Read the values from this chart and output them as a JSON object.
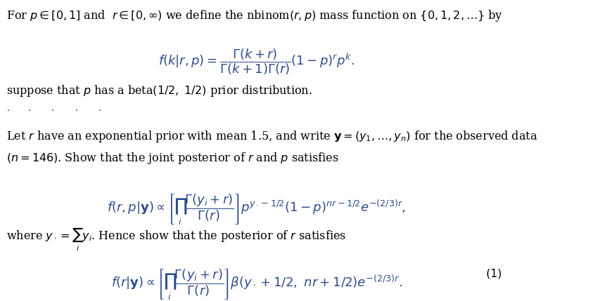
{
  "background_color": "#ffffff",
  "text_color": "#000000",
  "math_color": "#2e4a8e",
  "figsize": [
    8.4,
    4.29
  ],
  "dpi": 100,
  "line1": "For $p \\in [0,1]$ and  $r \\in [0,\\infty)$ we define the nbinom$(r,p)$ mass function on $\\{0,1,2,\\ldots\\}$ by",
  "eq1": "$f(k|r,p) = \\dfrac{\\Gamma(k+r)}{\\Gamma(k+1)\\Gamma(r)}(1-p)^r p^k.$",
  "line2": "suppose that $p$ has a beta$(1/2,\\ 1/2)$ prior distribution.",
  "dots": "$\\cdot \\qquad \\cdot \\qquad \\cdot \\qquad \\cdot \\qquad \\cdot$",
  "line3": "Let $r$ have an exponential prior with mean 1.5, and write $\\mathbf{y} = (y_1,\\ldots,y_n)$ for the observed data",
  "line3b": "$(n = 146)$. Show that the joint posterior of $r$ and $p$ satisfies",
  "eq2": "$f(r,p|\\mathbf{y}) \\propto \\left[\\prod_i \\dfrac{\\Gamma(y_i+r)}{\\Gamma(r)}\\right] p^{y_\\cdot - 1/2}(1-p)^{nr-1/2}e^{-(2/3)r},$",
  "line4": "where $y_\\cdot = \\sum_i y_i$. Hence show that the posterior of $r$ satisfies",
  "eq3": "$f(r|\\mathbf{y}) \\propto \\left[\\prod_i \\dfrac{\\Gamma(y_i+r)}{\\Gamma(r)}\\right] \\beta(y_\\cdot+1/2,\\ nr+1/2)e^{-(2/3)r}.$",
  "eq3_number": "(1)"
}
